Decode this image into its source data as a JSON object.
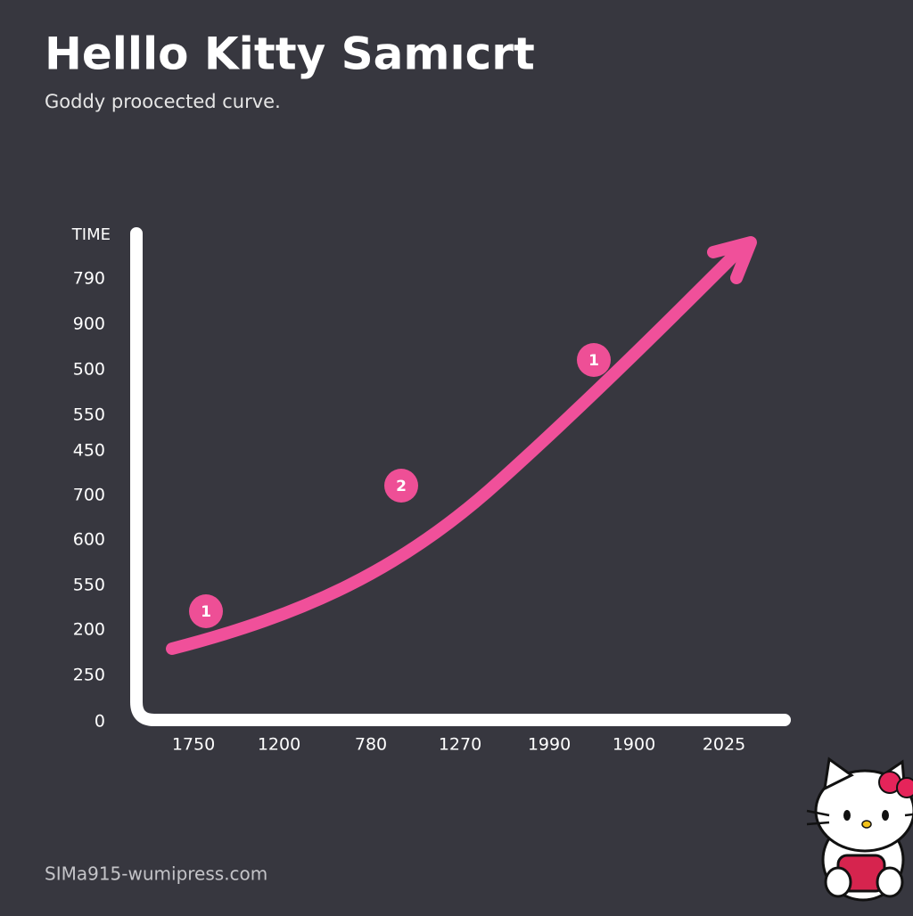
{
  "header": {
    "title": "Helllo Kitty Samıcrt",
    "subtitle": "Goddy proocected curve."
  },
  "axes": {
    "y_title": "TIME",
    "y_labels": [
      790,
      900,
      500,
      550,
      450,
      700,
      600,
      550,
      200,
      250,
      0
    ],
    "x_labels": [
      1750,
      1200,
      780,
      1270,
      1990,
      1900,
      2025
    ]
  },
  "callouts": [
    "1",
    "2",
    "1"
  ],
  "footer": "SIMa915-wumipress.com"
}
